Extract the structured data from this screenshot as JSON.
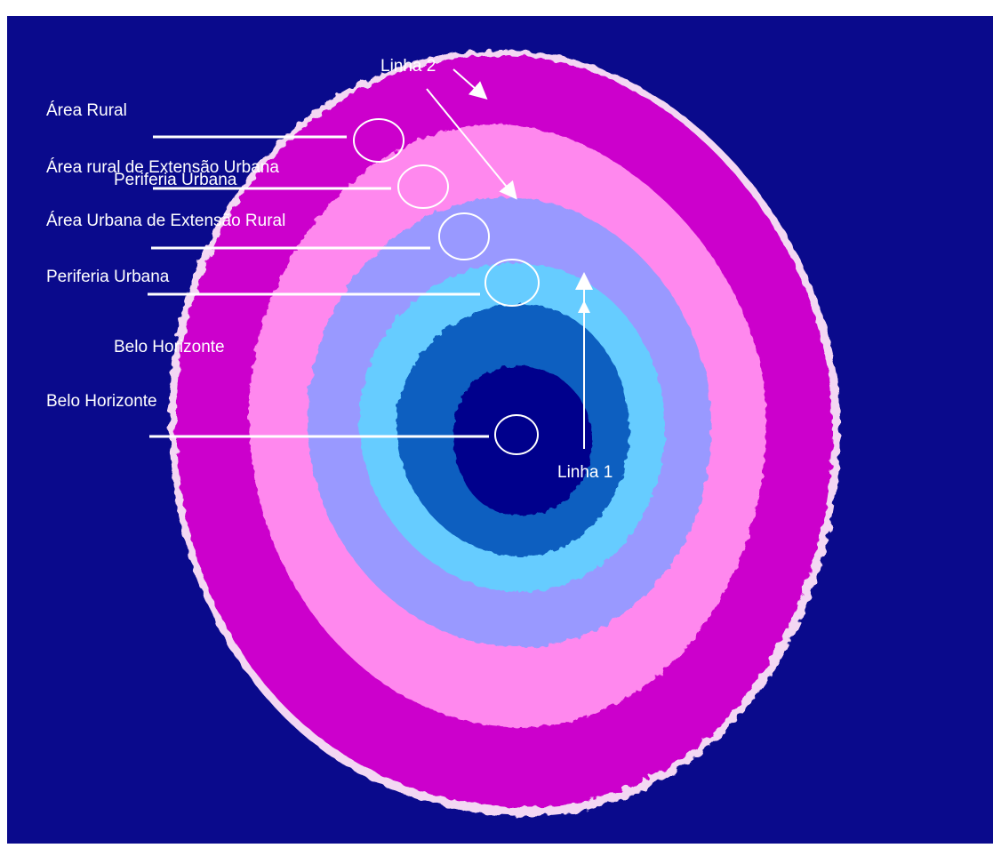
{
  "labels": {
    "area_rural": "Área Rural",
    "area_rural_extensao_urbana": "Área rural de Extensão Urbana",
    "periferia_urbana_overlap": "Periferia Urbana",
    "area_urbana_extensao_rural": "Área Urbana de Extensão Rural",
    "periferia_urbana": "Periferia Urbana",
    "belo_horizonte_upper": "Belo Horizonte",
    "belo_horizonte": "Belo Horizonte",
    "linha_1": "Linha 1",
    "linha_2": "Linha 2"
  },
  "colors": {
    "background": "#0a0a8c",
    "magenta": "#cc00cc",
    "pink": "#ff88ee",
    "lavender": "#9999ff",
    "light_blue": "#66ccff",
    "blue": "#0b5fc0",
    "center": "#00008c",
    "annotation": "#ffffff"
  }
}
